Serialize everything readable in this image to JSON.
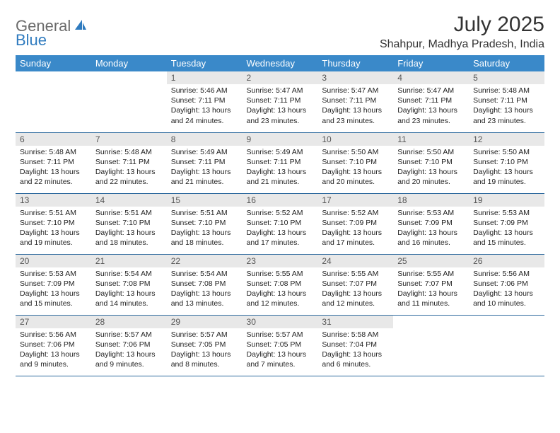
{
  "logo": {
    "text1": "General",
    "text2": "Blue"
  },
  "title": "July 2025",
  "location": "Shahpur, Madhya Pradesh, India",
  "colors": {
    "header_bg": "#3a89c9",
    "header_text": "#ffffff",
    "daynum_bg": "#e8e8e8",
    "border": "#2e6a9e",
    "logo_gray": "#6b6b6b",
    "logo_blue": "#2f7bbf"
  },
  "day_labels": [
    "Sunday",
    "Monday",
    "Tuesday",
    "Wednesday",
    "Thursday",
    "Friday",
    "Saturday"
  ],
  "weeks": [
    [
      null,
      null,
      {
        "n": "1",
        "sr": "5:46 AM",
        "ss": "7:11 PM",
        "dl": "13 hours and 24 minutes."
      },
      {
        "n": "2",
        "sr": "5:47 AM",
        "ss": "7:11 PM",
        "dl": "13 hours and 23 minutes."
      },
      {
        "n": "3",
        "sr": "5:47 AM",
        "ss": "7:11 PM",
        "dl": "13 hours and 23 minutes."
      },
      {
        "n": "4",
        "sr": "5:47 AM",
        "ss": "7:11 PM",
        "dl": "13 hours and 23 minutes."
      },
      {
        "n": "5",
        "sr": "5:48 AM",
        "ss": "7:11 PM",
        "dl": "13 hours and 23 minutes."
      }
    ],
    [
      {
        "n": "6",
        "sr": "5:48 AM",
        "ss": "7:11 PM",
        "dl": "13 hours and 22 minutes."
      },
      {
        "n": "7",
        "sr": "5:48 AM",
        "ss": "7:11 PM",
        "dl": "13 hours and 22 minutes."
      },
      {
        "n": "8",
        "sr": "5:49 AM",
        "ss": "7:11 PM",
        "dl": "13 hours and 21 minutes."
      },
      {
        "n": "9",
        "sr": "5:49 AM",
        "ss": "7:11 PM",
        "dl": "13 hours and 21 minutes."
      },
      {
        "n": "10",
        "sr": "5:50 AM",
        "ss": "7:10 PM",
        "dl": "13 hours and 20 minutes."
      },
      {
        "n": "11",
        "sr": "5:50 AM",
        "ss": "7:10 PM",
        "dl": "13 hours and 20 minutes."
      },
      {
        "n": "12",
        "sr": "5:50 AM",
        "ss": "7:10 PM",
        "dl": "13 hours and 19 minutes."
      }
    ],
    [
      {
        "n": "13",
        "sr": "5:51 AM",
        "ss": "7:10 PM",
        "dl": "13 hours and 19 minutes."
      },
      {
        "n": "14",
        "sr": "5:51 AM",
        "ss": "7:10 PM",
        "dl": "13 hours and 18 minutes."
      },
      {
        "n": "15",
        "sr": "5:51 AM",
        "ss": "7:10 PM",
        "dl": "13 hours and 18 minutes."
      },
      {
        "n": "16",
        "sr": "5:52 AM",
        "ss": "7:10 PM",
        "dl": "13 hours and 17 minutes."
      },
      {
        "n": "17",
        "sr": "5:52 AM",
        "ss": "7:09 PM",
        "dl": "13 hours and 17 minutes."
      },
      {
        "n": "18",
        "sr": "5:53 AM",
        "ss": "7:09 PM",
        "dl": "13 hours and 16 minutes."
      },
      {
        "n": "19",
        "sr": "5:53 AM",
        "ss": "7:09 PM",
        "dl": "13 hours and 15 minutes."
      }
    ],
    [
      {
        "n": "20",
        "sr": "5:53 AM",
        "ss": "7:09 PM",
        "dl": "13 hours and 15 minutes."
      },
      {
        "n": "21",
        "sr": "5:54 AM",
        "ss": "7:08 PM",
        "dl": "13 hours and 14 minutes."
      },
      {
        "n": "22",
        "sr": "5:54 AM",
        "ss": "7:08 PM",
        "dl": "13 hours and 13 minutes."
      },
      {
        "n": "23",
        "sr": "5:55 AM",
        "ss": "7:08 PM",
        "dl": "13 hours and 12 minutes."
      },
      {
        "n": "24",
        "sr": "5:55 AM",
        "ss": "7:07 PM",
        "dl": "13 hours and 12 minutes."
      },
      {
        "n": "25",
        "sr": "5:55 AM",
        "ss": "7:07 PM",
        "dl": "13 hours and 11 minutes."
      },
      {
        "n": "26",
        "sr": "5:56 AM",
        "ss": "7:06 PM",
        "dl": "13 hours and 10 minutes."
      }
    ],
    [
      {
        "n": "27",
        "sr": "5:56 AM",
        "ss": "7:06 PM",
        "dl": "13 hours and 9 minutes."
      },
      {
        "n": "28",
        "sr": "5:57 AM",
        "ss": "7:06 PM",
        "dl": "13 hours and 9 minutes."
      },
      {
        "n": "29",
        "sr": "5:57 AM",
        "ss": "7:05 PM",
        "dl": "13 hours and 8 minutes."
      },
      {
        "n": "30",
        "sr": "5:57 AM",
        "ss": "7:05 PM",
        "dl": "13 hours and 7 minutes."
      },
      {
        "n": "31",
        "sr": "5:58 AM",
        "ss": "7:04 PM",
        "dl": "13 hours and 6 minutes."
      },
      null,
      null
    ]
  ],
  "labels": {
    "sunrise": "Sunrise:",
    "sunset": "Sunset:",
    "daylight": "Daylight:"
  }
}
